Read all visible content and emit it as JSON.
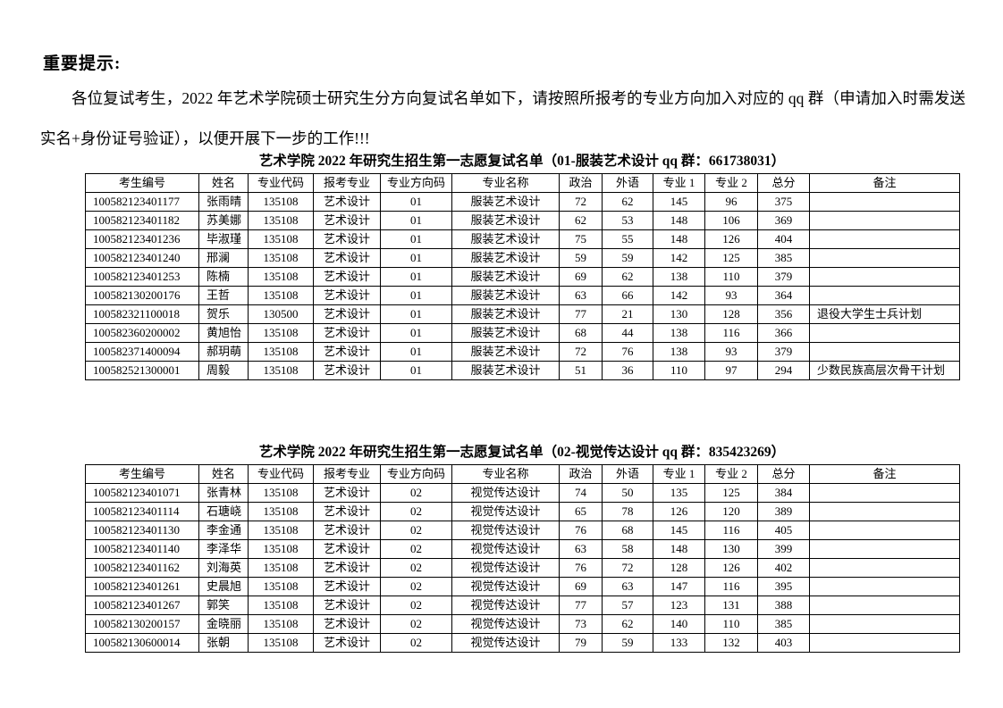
{
  "page": {
    "heading": "重要提示:",
    "intro": "各位复试考生，2022 年艺术学院硕士研究生分方向复试名单如下，请按照所报考的专业方向加入对应的 qq 群（申请加入时需发送实名+身份证号验证），以便开展下一步的工作!!!"
  },
  "tables": [
    {
      "title": "艺术学院 2022 年研究生招生第一志愿复试名单（01-服装艺术设计 qq 群：661738031）",
      "qq_group": "661738031",
      "direction": "01-服装艺术设计",
      "headers": [
        "考生编号",
        "姓名",
        "专业代码",
        "报考专业",
        "专业方向码",
        "专业名称",
        "政治",
        "外语",
        "专业 1",
        "专业 2",
        "总分",
        "备注"
      ],
      "rows": [
        [
          "100582123401177",
          "张雨晴",
          "135108",
          "艺术设计",
          "01",
          "服装艺术设计",
          "72",
          "62",
          "145",
          "96",
          "375",
          ""
        ],
        [
          "100582123401182",
          "苏美娜",
          "135108",
          "艺术设计",
          "01",
          "服装艺术设计",
          "62",
          "53",
          "148",
          "106",
          "369",
          ""
        ],
        [
          "100582123401236",
          "毕淑瑾",
          "135108",
          "艺术设计",
          "01",
          "服装艺术设计",
          "75",
          "55",
          "148",
          "126",
          "404",
          ""
        ],
        [
          "100582123401240",
          "邢澜",
          "135108",
          "艺术设计",
          "01",
          "服装艺术设计",
          "59",
          "59",
          "142",
          "125",
          "385",
          ""
        ],
        [
          "100582123401253",
          "陈楠",
          "135108",
          "艺术设计",
          "01",
          "服装艺术设计",
          "69",
          "62",
          "138",
          "110",
          "379",
          ""
        ],
        [
          "100582130200176",
          "王哲",
          "135108",
          "艺术设计",
          "01",
          "服装艺术设计",
          "63",
          "66",
          "142",
          "93",
          "364",
          ""
        ],
        [
          "100582321100018",
          "贺乐",
          "130500",
          "艺术设计",
          "01",
          "服装艺术设计",
          "77",
          "21",
          "130",
          "128",
          "356",
          "退役大学生士兵计划"
        ],
        [
          "100582360200002",
          "黄旭怡",
          "135108",
          "艺术设计",
          "01",
          "服装艺术设计",
          "68",
          "44",
          "138",
          "116",
          "366",
          ""
        ],
        [
          "100582371400094",
          "郝玥萌",
          "135108",
          "艺术设计",
          "01",
          "服装艺术设计",
          "72",
          "76",
          "138",
          "93",
          "379",
          ""
        ],
        [
          "100582521300001",
          "周毅",
          "135108",
          "艺术设计",
          "01",
          "服装艺术设计",
          "51",
          "36",
          "110",
          "97",
          "294",
          "少数民族高层次骨干计划"
        ]
      ]
    },
    {
      "title": "艺术学院 2022 年研究生招生第一志愿复试名单（02-视觉传达设计 qq 群：835423269）",
      "qq_group": "835423269",
      "direction": "02-视觉传达设计",
      "headers": [
        "考生编号",
        "姓名",
        "专业代码",
        "报考专业",
        "专业方向码",
        "专业名称",
        "政治",
        "外语",
        "专业 1",
        "专业 2",
        "总分",
        "备注"
      ],
      "rows": [
        [
          "100582123401071",
          "张青林",
          "135108",
          "艺术设计",
          "02",
          "视觉传达设计",
          "74",
          "50",
          "135",
          "125",
          "384",
          ""
        ],
        [
          "100582123401114",
          "石瑭峣",
          "135108",
          "艺术设计",
          "02",
          "视觉传达设计",
          "65",
          "78",
          "126",
          "120",
          "389",
          ""
        ],
        [
          "100582123401130",
          "李金通",
          "135108",
          "艺术设计",
          "02",
          "视觉传达设计",
          "76",
          "68",
          "145",
          "116",
          "405",
          ""
        ],
        [
          "100582123401140",
          "李泽华",
          "135108",
          "艺术设计",
          "02",
          "视觉传达设计",
          "63",
          "58",
          "148",
          "130",
          "399",
          ""
        ],
        [
          "100582123401162",
          "刘海英",
          "135108",
          "艺术设计",
          "02",
          "视觉传达设计",
          "76",
          "72",
          "128",
          "126",
          "402",
          ""
        ],
        [
          "100582123401261",
          "史晨旭",
          "135108",
          "艺术设计",
          "02",
          "视觉传达设计",
          "69",
          "63",
          "147",
          "116",
          "395",
          ""
        ],
        [
          "100582123401267",
          "郭笑",
          "135108",
          "艺术设计",
          "02",
          "视觉传达设计",
          "77",
          "57",
          "123",
          "131",
          "388",
          ""
        ],
        [
          "100582130200157",
          "金晓丽",
          "135108",
          "艺术设计",
          "02",
          "视觉传达设计",
          "73",
          "62",
          "140",
          "110",
          "385",
          ""
        ],
        [
          "100582130600014",
          "张朝",
          "135108",
          "艺术设计",
          "02",
          "视觉传达设计",
          "79",
          "59",
          "133",
          "132",
          "403",
          ""
        ]
      ]
    }
  ]
}
